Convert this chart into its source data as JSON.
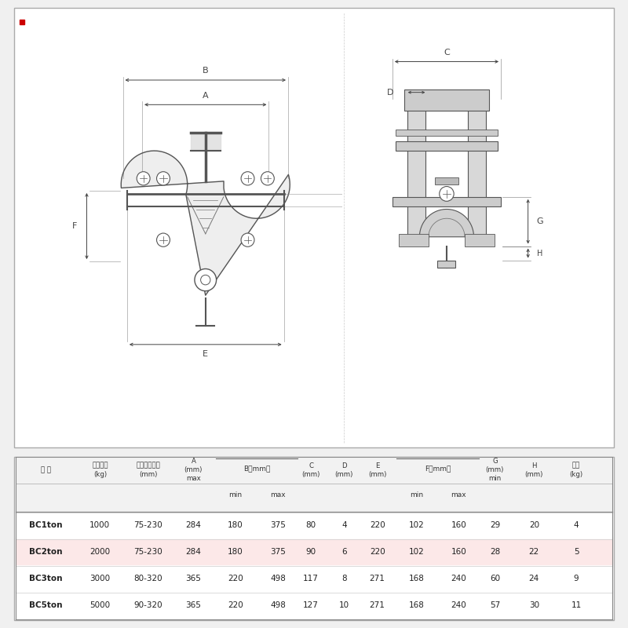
{
  "bg_color": "#f0f0f0",
  "drawing_bg": "#ffffff",
  "table_bg": "#ffffff",
  "red_dot_color": "#cc0000",
  "table_rows": [
    [
      "BC1ton",
      "1000",
      "75-230",
      "284",
      "180",
      "375",
      "80",
      "4",
      "220",
      "102",
      "160",
      "29",
      "20",
      "4"
    ],
    [
      "BC2ton",
      "2000",
      "75-230",
      "284",
      "180",
      "375",
      "90",
      "6",
      "220",
      "102",
      "160",
      "28",
      "22",
      "5"
    ],
    [
      "BC3ton",
      "3000",
      "80-320",
      "365",
      "220",
      "498",
      "117",
      "8",
      "271",
      "168",
      "240",
      "60",
      "24",
      "9"
    ],
    [
      "BC5ton",
      "5000",
      "90-320",
      "365",
      "220",
      "498",
      "127",
      "10",
      "271",
      "168",
      "240",
      "57",
      "30",
      "11"
    ]
  ],
  "row_colors": [
    "#ffffff",
    "#fce8e8",
    "#ffffff",
    "#ffffff"
  ]
}
